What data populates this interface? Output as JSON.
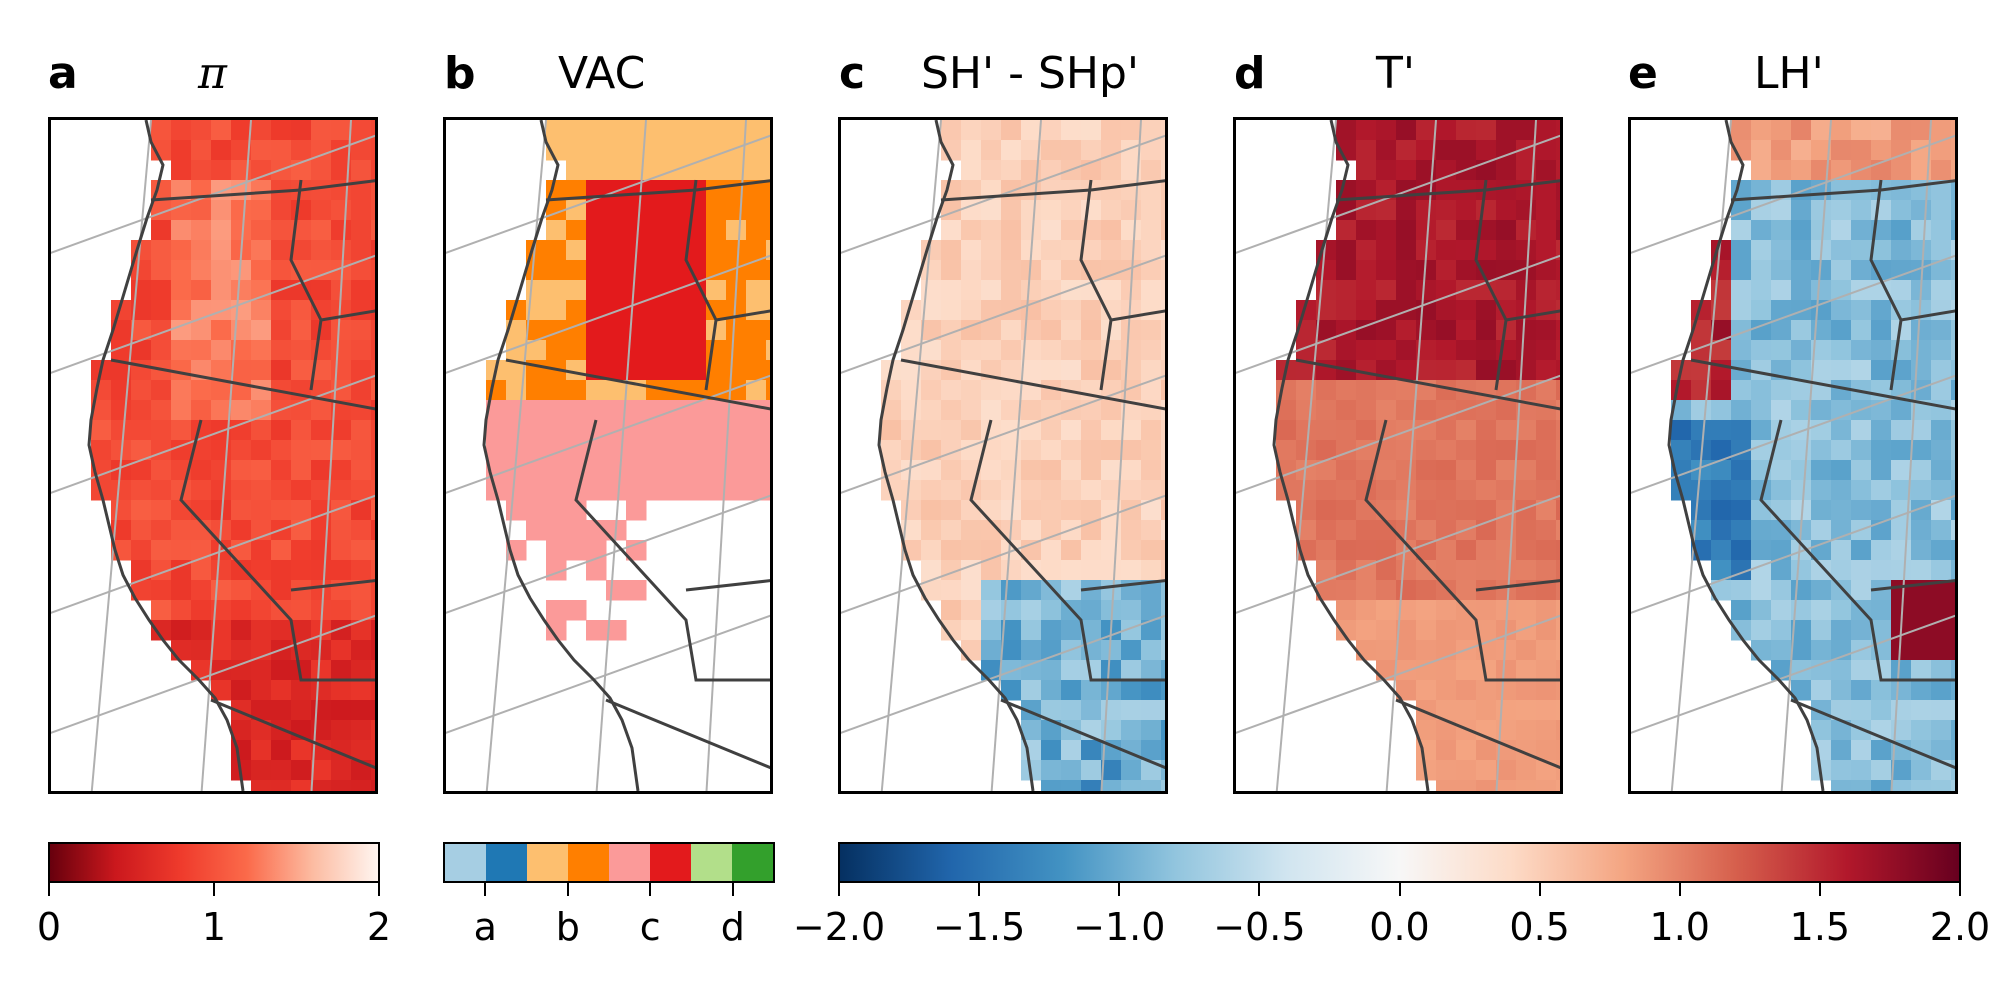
{
  "panels": [
    {
      "letter": "a",
      "title": "π",
      "scheme": "pi"
    },
    {
      "letter": "b",
      "title": "VAC",
      "scheme": "vac"
    },
    {
      "letter": "c",
      "title": "SH' - SHp'",
      "scheme": "shsh"
    },
    {
      "letter": "d",
      "title": "T'",
      "scheme": "temp"
    },
    {
      "letter": "e",
      "title": "LH'",
      "scheme": "lh"
    }
  ],
  "colorbars": {
    "pi": {
      "ticks": [
        "0",
        "1",
        "2"
      ],
      "colors": [
        "#67000d",
        "#cb181d",
        "#ef3b2c",
        "#fb6a4a",
        "#fcbba1",
        "#fff5f0"
      ]
    },
    "vac": {
      "ticks": [
        "a",
        "b",
        "c",
        "d"
      ],
      "colors": [
        "#a6cee3",
        "#1f78b4",
        "#fdbf6f",
        "#ff7f00",
        "#fb9a99",
        "#e31a1c",
        "#b2df8a",
        "#33a02c"
      ]
    },
    "diverging": {
      "ticks": [
        "−2.0",
        "−1.5",
        "−1.0",
        "−0.5",
        "0.0",
        "0.5",
        "1.0",
        "1.5",
        "2.0"
      ],
      "colors": [
        "#053061",
        "#2166ac",
        "#4393c3",
        "#92c5de",
        "#d1e5f0",
        "#f7f7f7",
        "#fddbc7",
        "#f4a582",
        "#d6604d",
        "#b2182b",
        "#67001f"
      ]
    }
  },
  "colors": {
    "state_borders": "#404040",
    "graticule": "#b0b0b0",
    "frame": "#000000"
  }
}
